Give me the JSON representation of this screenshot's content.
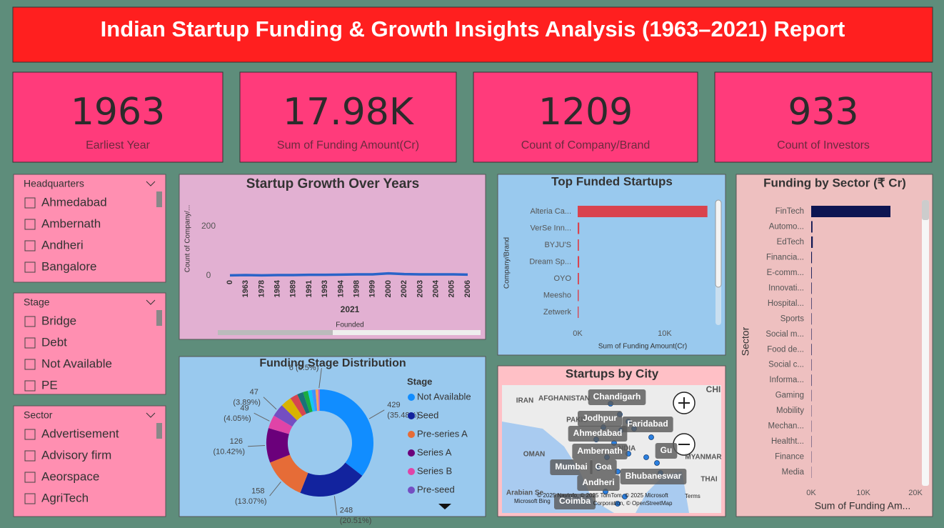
{
  "header": {
    "title": "Indian Startup Funding & Growth Insights Analysis (1963–2021) Report"
  },
  "kpis": [
    {
      "value": "1963",
      "label": "Earliest Year"
    },
    {
      "value": "17.98K",
      "label": "Sum of Funding Amount(Cr)"
    },
    {
      "value": "1209",
      "label": "Count of Company/Brand"
    },
    {
      "value": "933",
      "label": "Count of Investors"
    }
  ],
  "slicers": [
    {
      "title": "Headquarters",
      "items": [
        "Ahmedabad",
        "Ambernath",
        "Andheri",
        "Bangalore"
      ]
    },
    {
      "title": "Stage",
      "items": [
        "Bridge",
        "Debt",
        "Not Available",
        "PE"
      ]
    },
    {
      "title": "Sector",
      "items": [
        "Advertisement",
        "Advisory firm",
        "Aeorspace",
        "AgriTech"
      ]
    }
  ],
  "chart_data": [
    {
      "type": "line",
      "title": "Startup Growth Over Years",
      "y_label": "Count of Company/...",
      "x_label": "Founded",
      "x_sublabel": "2021",
      "categories": [
        "0",
        "1963",
        "1978",
        "1984",
        "1989",
        "1991",
        "1993",
        "1994",
        "1998",
        "1999",
        "2000",
        "2002",
        "2003",
        "2004",
        "2005",
        "2006"
      ],
      "values": [
        2,
        3,
        2,
        3,
        3,
        4,
        4,
        5,
        6,
        6,
        10,
        7,
        6,
        6,
        6,
        5
      ],
      "color": "#2a63c8",
      "ylim": [
        -10,
        320
      ],
      "yticks": [
        0,
        200
      ]
    },
    {
      "type": "bar",
      "orientation": "horizontal",
      "title": "Top Funded Startups",
      "x_label": "Sum of Funding Amount(Cr)",
      "y_label": "Company/Brand",
      "categories": [
        "Alteria Ca...",
        "VerSe Inn...",
        "BYJU'S",
        "Dream Sp...",
        "OYO",
        "Meesho",
        "Zetwerk"
      ],
      "values": [
        14900,
        180,
        140,
        170,
        150,
        120,
        110
      ],
      "color": "#d9434e",
      "xlim": [
        0,
        15500
      ],
      "xticks": [
        {
          "value": 0,
          "label": "0K"
        },
        {
          "value": 10000,
          "label": "10K"
        }
      ]
    },
    {
      "type": "pie",
      "title": "Funding Stage Distribution",
      "legend_title": "Stage",
      "hole": true,
      "categories": [
        "Not Available",
        "Seed",
        "Pre-series A",
        "Series A",
        "Series B",
        "Pre-seed",
        null,
        null,
        null,
        null,
        null,
        null,
        null,
        null
      ],
      "values": [
        429,
        248,
        158,
        126,
        49,
        47,
        40,
        28,
        22,
        18,
        14,
        14,
        10,
        6
      ],
      "value_labels": [
        "429 (35.48%)",
        "248 (20.51%)",
        "158 (13.07%)",
        "126 (10.42%)",
        "49 (4.05%)",
        "47 (3.89%)",
        null,
        null,
        null,
        null,
        null,
        null,
        null,
        "6 (0.5%)"
      ],
      "colors": [
        "#118dff",
        "#12239e",
        "#e66c37",
        "#6b007b",
        "#e044a7",
        "#744ec2",
        "#d9b300",
        "#d64550",
        "#197278",
        "#1aab40",
        "#15c6f4",
        "#4092ff",
        "#ffa058",
        "#be5dc9"
      ]
    },
    {
      "type": "bar",
      "orientation": "horizontal",
      "title": "Funding by Sector (₹ Cr)",
      "x_label": "Sum of Funding Am...",
      "y_label": "Sector",
      "categories": [
        "FinTech",
        "Automo...",
        "EdTech",
        "Financia...",
        "E-comm...",
        "Innovati...",
        "Hospital...",
        "Sports",
        "Social m...",
        "Food de...",
        "Social c...",
        "Informa...",
        "Gaming",
        "Mobility",
        "Mechan...",
        "Healtht...",
        "Finance",
        "Media"
      ],
      "values": [
        15200,
        250,
        300,
        150,
        120,
        100,
        90,
        80,
        80,
        90,
        70,
        80,
        60,
        50,
        50,
        60,
        50,
        40
      ],
      "color": "#0d1552",
      "xlim": [
        0,
        21500
      ],
      "xticks": [
        {
          "value": 0,
          "label": "0K"
        },
        {
          "value": 10000,
          "label": "10K"
        },
        {
          "value": 20000,
          "label": "20K"
        }
      ]
    }
  ],
  "map": {
    "title": "Startups by City",
    "regions": [
      "IRAN",
      "AFGHANISTAN",
      "PAKIS",
      "OMAN",
      "NDIA",
      "CHI",
      "MYANMAR",
      "THAI",
      "Arabian Se"
    ],
    "cities": [
      "Chandigarh",
      "Jodhpur",
      "Faridabad",
      "Ahmedabad",
      "Ambernath",
      "Gu",
      "Mumbai",
      "Goa",
      "Andheri",
      "Bhubaneswar",
      "Coimba"
    ],
    "attribution": [
      "© 2025 NavInfo, © 2025 TomTom, © 2025 Microsoft",
      "Corporation, © OpenStreetMap",
      "Terms",
      "Microsoft Bing"
    ]
  }
}
